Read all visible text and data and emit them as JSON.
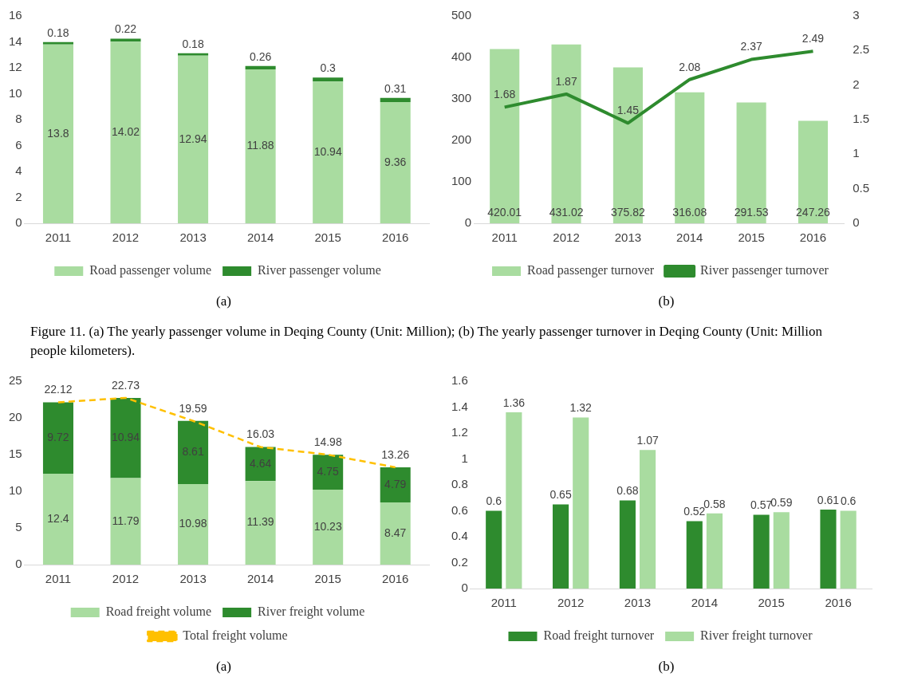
{
  "chart_data": [
    {
      "type": "bar",
      "stacked": true,
      "categories": [
        "2011",
        "2012",
        "2013",
        "2014",
        "2015",
        "2016"
      ],
      "series": [
        {
          "name": "Road passenger volume",
          "color": "#a9dca0",
          "values": [
            13.8,
            14.02,
            12.94,
            11.88,
            10.94,
            9.36
          ]
        },
        {
          "name": "River passenger volume",
          "color": "#2e8b2e",
          "values": [
            0.18,
            0.22,
            0.18,
            0.26,
            0.3,
            0.31
          ]
        }
      ],
      "ylim": [
        0,
        16
      ],
      "yticks": [
        0,
        2,
        4,
        6,
        8,
        10,
        12,
        14,
        16
      ],
      "data_labels": true,
      "legend": "bottom",
      "annotations": [
        "(a)"
      ]
    },
    {
      "type": "bar",
      "categories": [
        "2011",
        "2012",
        "2013",
        "2014",
        "2015",
        "2016"
      ],
      "series": [
        {
          "name": "Road passenger turnover",
          "color": "#a9dca0",
          "values": [
            420.01,
            431.02,
            375.82,
            316.08,
            291.53,
            247.26
          ]
        },
        {
          "name": "River passenger turnover",
          "type": "line",
          "axis": "y2",
          "color": "#2e8b2e",
          "values": [
            1.68,
            1.87,
            1.45,
            2.08,
            2.37,
            2.49
          ]
        }
      ],
      "ylim": [
        0,
        500
      ],
      "yticks": [
        0,
        100,
        200,
        300,
        400,
        500
      ],
      "y2lim": [
        0,
        3
      ],
      "y2ticks": [
        0,
        0.5,
        1,
        1.5,
        2,
        2.5,
        3
      ],
      "data_labels": true,
      "legend": "bottom",
      "annotations": [
        "(b)",
        "Figure 11. (a) The yearly passenger volume in Deqing County (Unit: Million); (b) The yearly passenger turnover in Deqing County (Unit: Million people kilometers)."
      ]
    },
    {
      "type": "bar",
      "stacked": true,
      "categories": [
        "2011",
        "2012",
        "2013",
        "2014",
        "2015",
        "2016"
      ],
      "series": [
        {
          "name": "Road freight volume",
          "color": "#a9dca0",
          "values": [
            12.4,
            11.79,
            10.98,
            11.39,
            10.23,
            8.47
          ]
        },
        {
          "name": "River freight volume",
          "color": "#2e8b2e",
          "values": [
            9.72,
            10.94,
            8.61,
            4.64,
            4.75,
            4.79
          ]
        },
        {
          "name": "Total freight volume",
          "type": "line",
          "line_style": "dashed",
          "color": "#ffc000",
          "values": [
            22.12,
            22.73,
            19.59,
            16.03,
            14.98,
            13.26
          ]
        }
      ],
      "ylim": [
        0,
        25
      ],
      "yticks": [
        0,
        5,
        10,
        15,
        20,
        25
      ],
      "data_labels": true,
      "legend": "bottom",
      "annotations": [
        "(a)"
      ]
    },
    {
      "type": "bar",
      "categories": [
        "2011",
        "2012",
        "2013",
        "2014",
        "2015",
        "2016"
      ],
      "series": [
        {
          "name": "Road freight turnover",
          "color": "#2e8b2e",
          "values": [
            0.6,
            0.65,
            0.68,
            0.52,
            0.57,
            0.61
          ]
        },
        {
          "name": "River freight turnover",
          "color": "#a9dca0",
          "values": [
            1.36,
            1.32,
            1.07,
            0.58,
            0.59,
            0.6
          ]
        }
      ],
      "ylim": [
        0,
        1.6
      ],
      "yticks": [
        0,
        0.2,
        0.4,
        0.6,
        0.8,
        1,
        1.2,
        1.4,
        1.6
      ],
      "data_labels": true,
      "legend": "bottom",
      "annotations": [
        "(b)"
      ]
    }
  ]
}
